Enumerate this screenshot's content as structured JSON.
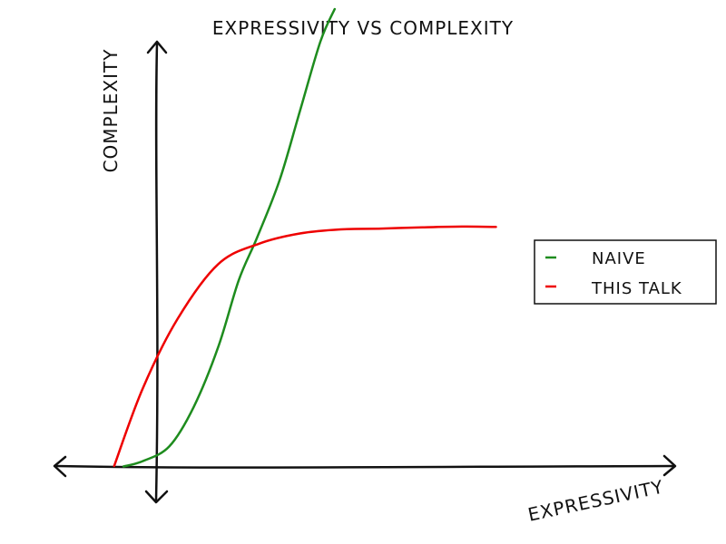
{
  "chart_data": {
    "type": "line",
    "title": "EXPRESSIVITY VS COMPLEXITY",
    "xlabel": "EXPRESSIVITY",
    "ylabel": "COMPLEXITY",
    "grid": false,
    "legend_position": "right",
    "series": [
      {
        "name": "NAIVE",
        "color": "#1e8c1e",
        "x": [
          -0.82,
          -0.35,
          0.3,
          0.9,
          1.5,
          2.0,
          2.45,
          3.0,
          3.5,
          4.0,
          4.35
        ],
        "y": [
          -0.01,
          0.12,
          0.48,
          1.45,
          2.92,
          4.55,
          5.6,
          7.0,
          8.7,
          10.4,
          11.2
        ]
      },
      {
        "name": "THIS TALK",
        "color": "#ee0000",
        "x": [
          -1.05,
          -0.35,
          0.5,
          1.5,
          2.5,
          3.5,
          4.5,
          5.5,
          6.5,
          7.5,
          8.3
        ],
        "y": [
          0.0,
          1.9,
          3.6,
          4.95,
          5.45,
          5.7,
          5.8,
          5.82,
          5.85,
          5.87,
          5.86
        ]
      }
    ]
  }
}
